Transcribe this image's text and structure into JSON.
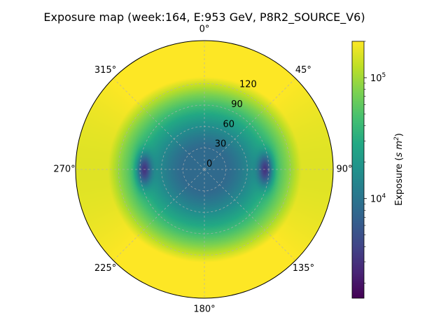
{
  "chart_data": {
    "type": "heatmap",
    "projection": "polar",
    "title": "Exposure map (week:164, E:953 GeV, P8R2_SOURCE_V6)",
    "angular_direction": "clockwise",
    "angular_zero": "top",
    "angular_tick_labels": [
      "0°",
      "45°",
      "90°",
      "135°",
      "180°",
      "225°",
      "270°",
      "315°"
    ],
    "radial_tick_labels": [
      "0",
      "30",
      "60",
      "90",
      "120"
    ],
    "radial_ticks": [
      0,
      30,
      60,
      90,
      120
    ],
    "rlim": [
      0,
      180
    ],
    "grid": true,
    "colormap": "viridis",
    "colorbar": {
      "label": "Exposure (s m²)",
      "label_prefix": "Exposure (",
      "label_unit_base": "s m",
      "label_unit_exp": "2",
      "label_suffix": ")",
      "scale": "log",
      "range": [
        1500,
        200000
      ],
      "ticks": [
        {
          "value": 10000,
          "base": "10",
          "exp": "4"
        },
        {
          "value": 100000,
          "base": "10",
          "exp": "5"
        }
      ]
    },
    "exposure_model": {
      "center": 8000,
      "low_cells": [
        {
          "azimuth_deg": 270,
          "zenith_deg": 85,
          "value": 1500
        },
        {
          "azimuth_deg": 90,
          "zenith_deg": 85,
          "value": 1500
        }
      ],
      "zenith_edge": 180,
      "edge_value": 200000
    }
  }
}
